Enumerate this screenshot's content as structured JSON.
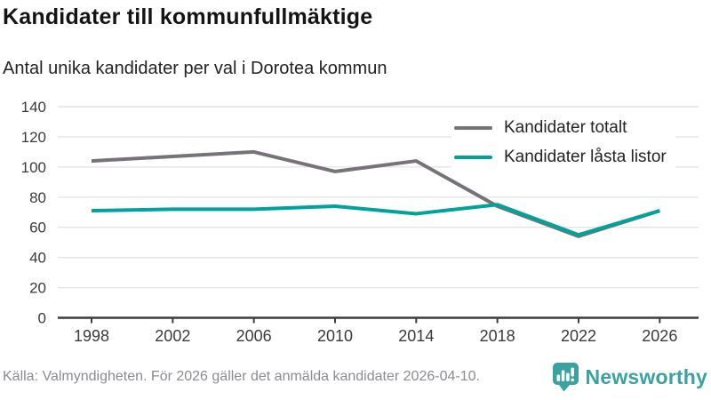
{
  "header": {
    "title": "Kandidater till kommunfullmäktige",
    "subtitle": "Antal unika kandidater per val i Dorotea kommun"
  },
  "chart_data": {
    "type": "line",
    "title": "Kandidater till kommunfullmäktige",
    "subtitle": "Antal unika kandidater per val i Dorotea kommun",
    "categories": [
      "1998",
      "2002",
      "2006",
      "2010",
      "2014",
      "2018",
      "2022",
      "2026"
    ],
    "series": [
      {
        "name": "Kandidater totalt",
        "color": "#767278",
        "values": [
          104,
          107,
          110,
          97,
          104,
          74,
          54,
          71
        ]
      },
      {
        "name": "Kandidater låsta listor",
        "color": "#00a39b",
        "values": [
          71,
          72,
          72,
          74,
          69,
          75,
          55,
          71
        ]
      }
    ],
    "ylim": [
      0,
      140
    ],
    "yticks": [
      0,
      20,
      40,
      60,
      80,
      100,
      120,
      140
    ],
    "grid": true,
    "legend_position": "top-right"
  },
  "footer": {
    "source": "Källa: Valmyndigheten. För 2026 gäller det anmälda kandidater 2026-04-10.",
    "logo_text": "Newsworthy"
  },
  "colors": {
    "grid": "#e4e4e4",
    "axis": "#3c3c3c",
    "tick_text": "#3a3a3a",
    "source_text": "#8b8b92",
    "logo": "#3aa39f"
  }
}
